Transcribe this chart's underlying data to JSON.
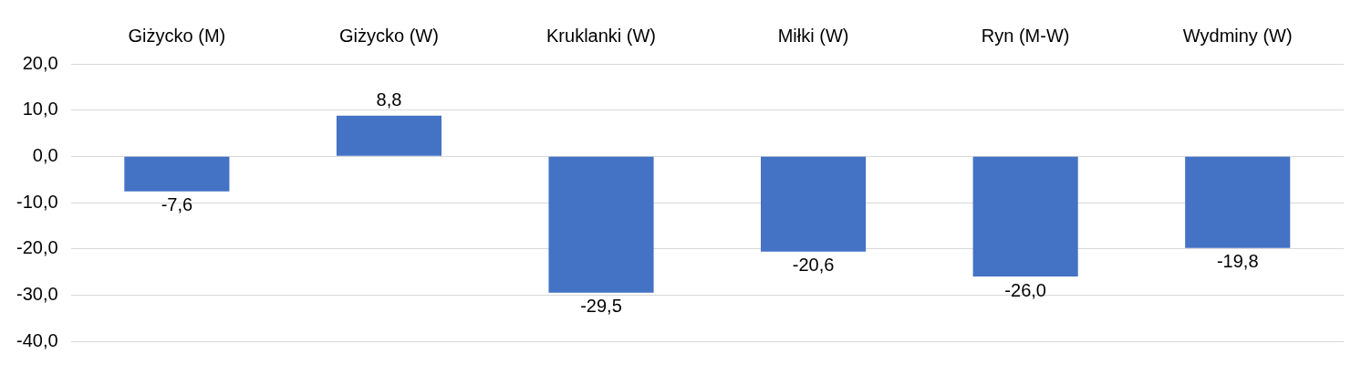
{
  "chart_data": {
    "type": "bar",
    "categories": [
      "Giżycko (M)",
      "Giżycko (W)",
      "Kruklanki (W)",
      "Miłki (W)",
      "Ryn (M-W)",
      "Wydminy (W)"
    ],
    "values": [
      -7.6,
      8.8,
      -29.5,
      -20.6,
      -26.0,
      -19.8
    ],
    "value_labels": [
      "-7,6",
      "8,8",
      "-29,5",
      "-20,6",
      "-26,0",
      "-19,8"
    ],
    "color": "#4472c4",
    "ylim": [
      -40,
      20
    ],
    "yticks": [
      {
        "value": 20,
        "label": "20,0"
      },
      {
        "value": 10,
        "label": "10,0"
      },
      {
        "value": 0,
        "label": "0,0"
      },
      {
        "value": -10,
        "label": "-10,0"
      },
      {
        "value": -20,
        "label": "-20,0"
      },
      {
        "value": -30,
        "label": "-30,0"
      },
      {
        "value": -40,
        "label": "-40,0"
      }
    ],
    "grid": "y"
  }
}
